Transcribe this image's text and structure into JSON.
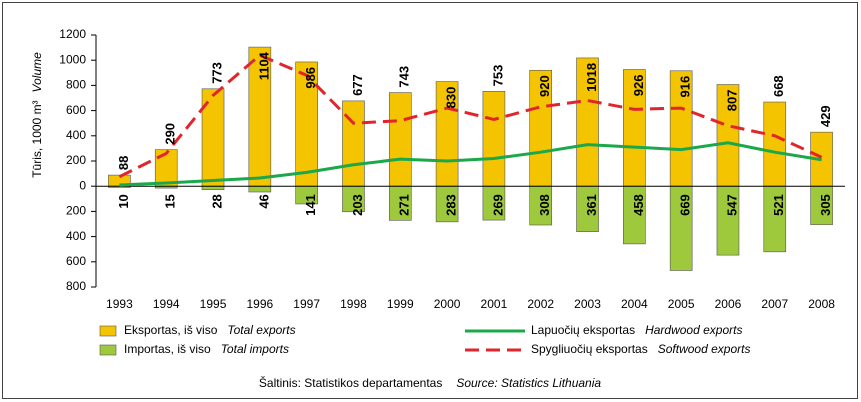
{
  "chart_data": {
    "type": "bar",
    "ylabel": "Tūris, 1000 m³",
    "ylabel_en": "Volume",
    "categories": [
      "1993",
      "1994",
      "1995",
      "1996",
      "1997",
      "1998",
      "1999",
      "2000",
      "2001",
      "2002",
      "2003",
      "2004",
      "2005",
      "2006",
      "2007",
      "2008"
    ],
    "ylim": [
      -800,
      1200
    ],
    "yticks": [
      {
        "value": -800,
        "label": "800"
      },
      {
        "value": -600,
        "label": "600"
      },
      {
        "value": -400,
        "label": "400"
      },
      {
        "value": -200,
        "label": "200"
      },
      0,
      200,
      400,
      600,
      800,
      1000,
      1200
    ],
    "series": [
      {
        "name": "Eksportas, iš viso",
        "name_en": "Total exports",
        "type": "bar",
        "color": "#f5c400",
        "values": [
          88,
          290,
          773,
          1104,
          986,
          677,
          743,
          830,
          753,
          920,
          1018,
          926,
          916,
          807,
          668,
          429
        ]
      },
      {
        "name": "Importas, iš viso",
        "name_en": "Total imports",
        "type": "bar",
        "color": "#9ec93c",
        "values": [
          -10,
          -15,
          -28,
          -46,
          -141,
          -203,
          -271,
          -283,
          -269,
          -308,
          -361,
          -458,
          -669,
          -547,
          -521,
          -305
        ],
        "value_labels": [
          "10",
          "15",
          "28",
          "46",
          "141",
          "203",
          "271",
          "283",
          "269",
          "308",
          "361",
          "458",
          "669",
          "547",
          "521",
          "305"
        ]
      },
      {
        "name": "Lapuočių eksportas",
        "name_en": "Hardwood exports",
        "type": "line",
        "color": "#1aa84a",
        "values": [
          10,
          25,
          45,
          65,
          110,
          170,
          215,
          200,
          220,
          270,
          330,
          310,
          290,
          345,
          270,
          210
        ]
      },
      {
        "name": "Spygliuočių eksportas",
        "name_en": "Softwood exports",
        "type": "line",
        "dashed": true,
        "color": "#e1262b",
        "values": [
          75,
          260,
          720,
          1040,
          880,
          500,
          520,
          620,
          530,
          630,
          680,
          610,
          620,
          480,
          400,
          230
        ]
      }
    ],
    "source": "Šaltinis: Statistikos departamentas",
    "source_en": "Source: Statistics Lithuania"
  }
}
